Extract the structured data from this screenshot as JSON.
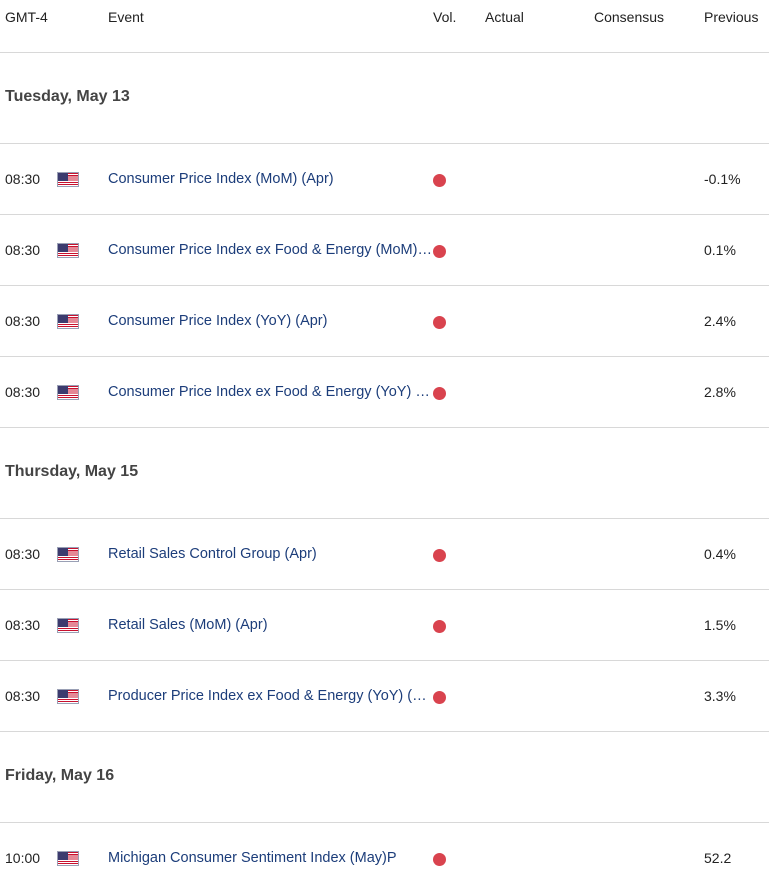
{
  "header": {
    "timezone": "GMT-4",
    "event": "Event",
    "vol": "Vol.",
    "actual": "Actual",
    "consensus": "Consensus",
    "previous": "Previous"
  },
  "days": [
    {
      "label": "Tuesday, May 13",
      "events": [
        {
          "time": "08:30",
          "flag": "us-flag-icon",
          "name": "Consumer Price Index (MoM) (Apr)",
          "volatility": "high",
          "actual": "",
          "consensus": "",
          "previous": "-0.1%"
        },
        {
          "time": "08:30",
          "flag": "us-flag-icon",
          "name": "Consumer Price Index ex Food & Energy (MoM) (Apr)",
          "volatility": "high",
          "actual": "",
          "consensus": "",
          "previous": "0.1%"
        },
        {
          "time": "08:30",
          "flag": "us-flag-icon",
          "name": "Consumer Price Index (YoY) (Apr)",
          "volatility": "high",
          "actual": "",
          "consensus": "",
          "previous": "2.4%"
        },
        {
          "time": "08:30",
          "flag": "us-flag-icon",
          "name": "Consumer Price Index ex Food & Energy (YoY) (Apr)",
          "volatility": "high",
          "actual": "",
          "consensus": "",
          "previous": "2.8%"
        }
      ]
    },
    {
      "label": "Thursday, May 15",
      "events": [
        {
          "time": "08:30",
          "flag": "us-flag-icon",
          "name": "Retail Sales Control Group (Apr)",
          "volatility": "high",
          "actual": "",
          "consensus": "",
          "previous": "0.4%"
        },
        {
          "time": "08:30",
          "flag": "us-flag-icon",
          "name": "Retail Sales (MoM) (Apr)",
          "volatility": "high",
          "actual": "",
          "consensus": "",
          "previous": "1.5%"
        },
        {
          "time": "08:30",
          "flag": "us-flag-icon",
          "name": "Producer Price Index ex Food & Energy (YoY) (Apr)",
          "volatility": "high",
          "actual": "",
          "consensus": "",
          "previous": "3.3%"
        }
      ]
    },
    {
      "label": "Friday, May 16",
      "events": [
        {
          "time": "10:00",
          "flag": "us-flag-icon",
          "name": "Michigan Consumer Sentiment Index (May)P",
          "volatility": "high",
          "actual": "",
          "consensus": "",
          "previous": "52.2"
        }
      ]
    }
  ],
  "colors": {
    "event_text": "#1c3d7a",
    "volatility_high": "#d9434e",
    "divider": "#d8d8d8"
  }
}
